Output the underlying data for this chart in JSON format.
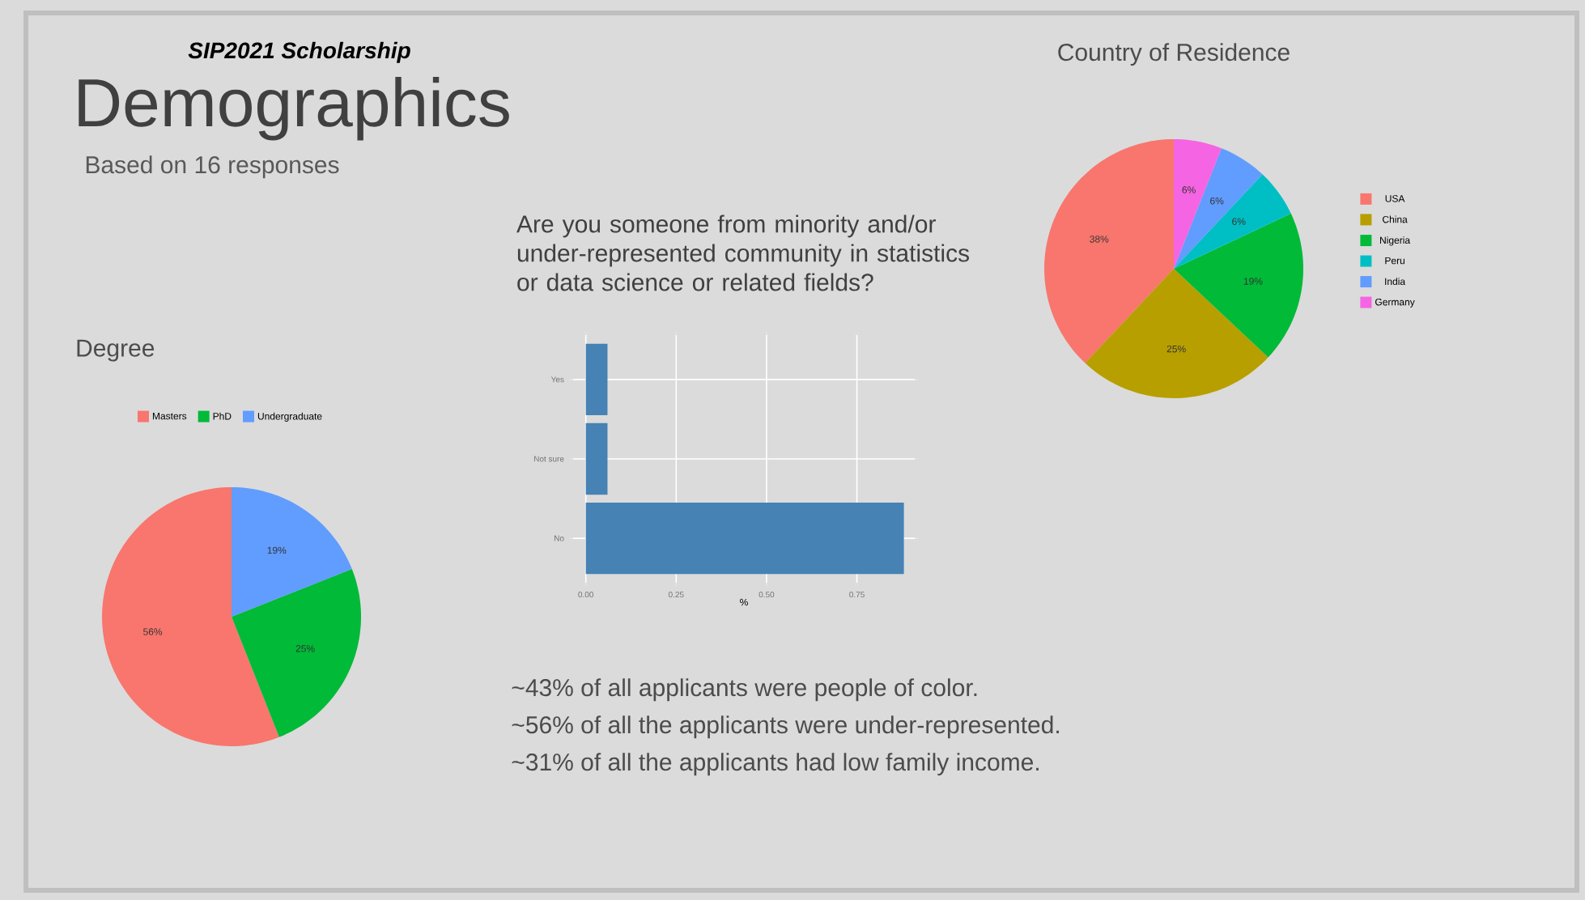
{
  "chart_data": [
    {
      "type": "other",
      "title": "Demographics",
      "subtitle": "SIP2021 Scholarship",
      "annotations": [
        "Based on 16 responses"
      ]
    },
    {
      "type": "pie",
      "title": "Degree",
      "categories": [
        "Masters",
        "PhD",
        "Undergraduate"
      ],
      "values": [
        56,
        25,
        19
      ],
      "colors": [
        "#f8766d",
        "#00ba38",
        "#619cff"
      ],
      "value_labels": [
        "56%",
        "25%",
        "19%"
      ],
      "legend": "top"
    },
    {
      "type": "bar",
      "orientation": "horizontal",
      "title": "Are you someone from minority and/or under-represented community in statistics or data science or related fields?",
      "categories": [
        "Yes",
        "Not sure",
        "No"
      ],
      "values": [
        0.06,
        0.06,
        0.88
      ],
      "color": "#4682b4",
      "xlabel": "%",
      "xlim": [
        -0.044,
        0.919
      ],
      "xticks": [
        {
          "value": 0,
          "label": "0.00"
        },
        {
          "value": 0.25,
          "label": "0.25"
        },
        {
          "value": 0.5,
          "label": "0.50"
        },
        {
          "value": 0.75,
          "label": "0.75"
        }
      ],
      "grid": true,
      "annotations": [
        "~43% of all applicants were people of color.",
        "~56% of all the applicants were under-represented.",
        "~31% of all the applicants had low family income."
      ]
    },
    {
      "type": "pie",
      "title": "Country of Residence",
      "categories": [
        "USA",
        "China",
        "Nigeria",
        "Peru",
        "India",
        "Germany"
      ],
      "values": [
        38,
        25,
        19,
        6,
        6,
        6
      ],
      "colors": [
        "#f8766d",
        "#b79f00",
        "#00ba38",
        "#00bfc4",
        "#619cff",
        "#f564e3"
      ],
      "value_labels": [
        "38%",
        "25%",
        "19%",
        "6%",
        "6%",
        "6%"
      ],
      "legend": "right"
    }
  ]
}
